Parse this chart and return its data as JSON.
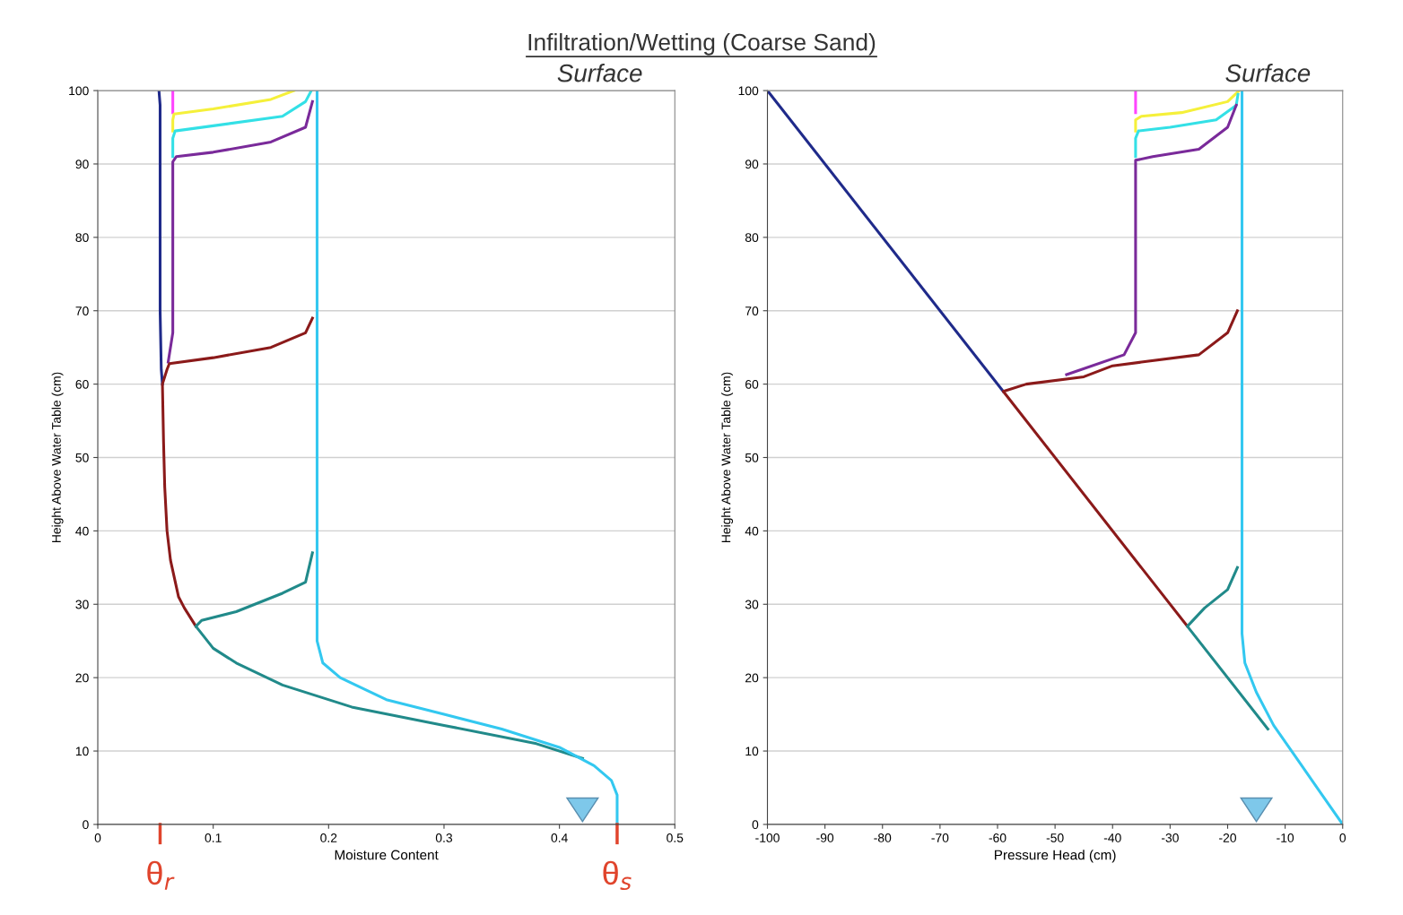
{
  "chart_data": [
    {
      "type": "line",
      "title": "Infiltration/Wetting (Coarse Sand)",
      "xlabel": "Moisture Content",
      "ylabel": "Height Above Water Table (cm)",
      "xlim": [
        0,
        0.5
      ],
      "xticks": [
        0,
        0.1,
        0.2,
        0.3,
        0.4,
        0.5
      ],
      "ylim": [
        0,
        100
      ],
      "yticks": [
        0,
        10,
        20,
        30,
        40,
        50,
        60,
        70,
        80,
        90,
        100
      ],
      "grid": "y",
      "marker": "none",
      "line_style": "solid",
      "annotations": [
        "Surface",
        "θ$_{r}$",
        "θ$_{s}$"
      ],
      "series": [
        {
          "color": "#1f2a8a",
          "x": [
            0.056,
            0.055,
            0.054,
            0.054,
            0.053
          ],
          "values": [
            60,
            62,
            70,
            98,
            100
          ]
        },
        {
          "color": "#ff44ff",
          "x": [
            0.065,
            0.065
          ],
          "values": [
            97,
            100
          ]
        },
        {
          "color": "#f5f03a",
          "x": [
            0.065,
            0.065,
            0.066,
            0.1,
            0.15,
            0.17
          ],
          "values": [
            94.5,
            96,
            96.8,
            97.5,
            98.8,
            100
          ]
        },
        {
          "color": "#33e0e6",
          "x": [
            0.065,
            0.065,
            0.067,
            0.1,
            0.16,
            0.18,
            0.185
          ],
          "values": [
            91,
            93.5,
            94.5,
            95.2,
            96.5,
            98.5,
            100
          ]
        },
        {
          "color": "#7a2a9a",
          "x": [
            0.061,
            0.065,
            0.065,
            0.068,
            0.1,
            0.15,
            0.18,
            0.186
          ],
          "values": [
            63,
            67,
            90.3,
            91,
            91.6,
            93,
            95,
            98.5
          ]
        },
        {
          "color": "#8b1a1a",
          "x": [
            0.085,
            0.075,
            0.07,
            0.063,
            0.06,
            0.058,
            0.057,
            0.056,
            0.06,
            0.062,
            0.1,
            0.15,
            0.18,
            0.186
          ],
          "values": [
            27,
            29.5,
            31,
            36,
            40,
            46,
            52,
            60,
            62,
            62.8,
            63.6,
            65,
            67,
            69
          ]
        },
        {
          "color": "#218a8a",
          "x": [
            0.42,
            0.38,
            0.3,
            0.22,
            0.16,
            0.12,
            0.1,
            0.085,
            0.09,
            0.12,
            0.16,
            0.18,
            0.186
          ],
          "values": [
            9,
            11,
            13.5,
            16,
            19,
            22,
            24,
            27,
            27.8,
            29,
            31.5,
            33,
            37
          ]
        },
        {
          "color": "#33c8f0",
          "x": [
            0.45,
            0.45,
            0.445,
            0.43,
            0.4,
            0.35,
            0.3,
            0.25,
            0.21,
            0.195,
            0.19,
            0.19
          ],
          "values": [
            0,
            4,
            6,
            8,
            10.5,
            13,
            15,
            17,
            20,
            22,
            25,
            100
          ]
        }
      ]
    },
    {
      "type": "line",
      "xlabel": "Pressure Head (cm)",
      "ylabel": "Height Above Water Table (cm)",
      "xlim": [
        -100,
        0
      ],
      "xticks": [
        -100,
        -90,
        -80,
        -70,
        -60,
        -50,
        -40,
        -30,
        -20,
        -10,
        0
      ],
      "ylim": [
        0,
        100
      ],
      "yticks": [
        0,
        10,
        20,
        30,
        40,
        50,
        60,
        70,
        80,
        90,
        100
      ],
      "grid": "y",
      "marker": "none",
      "line_style": "solid",
      "annotations": [
        "Surface"
      ],
      "series": [
        {
          "color": "#1f2a8a",
          "x": [
            -59,
            -100
          ],
          "values": [
            59,
            100
          ]
        },
        {
          "color": "#ff44ff",
          "x": [
            -36,
            -36
          ],
          "values": [
            97,
            100
          ]
        },
        {
          "color": "#f5f03a",
          "x": [
            -36,
            -36,
            -35,
            -28,
            -20,
            -18
          ],
          "values": [
            94.5,
            96,
            96.5,
            97,
            98.5,
            100
          ]
        },
        {
          "color": "#33e0e6",
          "x": [
            -36,
            -36,
            -35.5,
            -30,
            -22,
            -18.5,
            -18.2
          ],
          "values": [
            91,
            93.5,
            94.5,
            95,
            96,
            98,
            99.5
          ]
        },
        {
          "color": "#7a2a9a",
          "x": [
            -48,
            -38,
            -36,
            -36,
            -33,
            -25,
            -20,
            -18.5
          ],
          "values": [
            61.3,
            64,
            67,
            90.5,
            91,
            92,
            95,
            98
          ]
        },
        {
          "color": "#8b1a1a",
          "x": [
            -27,
            -59,
            -55,
            -45,
            -40,
            -35,
            -25,
            -20,
            -18.3
          ],
          "values": [
            27,
            59,
            60,
            61,
            62.5,
            63,
            64,
            67,
            70
          ]
        },
        {
          "color": "#218a8a",
          "x": [
            -13,
            -27,
            -24,
            -20,
            -18.3
          ],
          "values": [
            13,
            27,
            29.5,
            32,
            35
          ]
        },
        {
          "color": "#33c8f0",
          "x": [
            0,
            -4,
            -8,
            -12,
            -15,
            -17,
            -17.5,
            -17.5
          ],
          "values": [
            0,
            4.5,
            9,
            13.5,
            18,
            22,
            26,
            100
          ]
        }
      ]
    }
  ]
}
